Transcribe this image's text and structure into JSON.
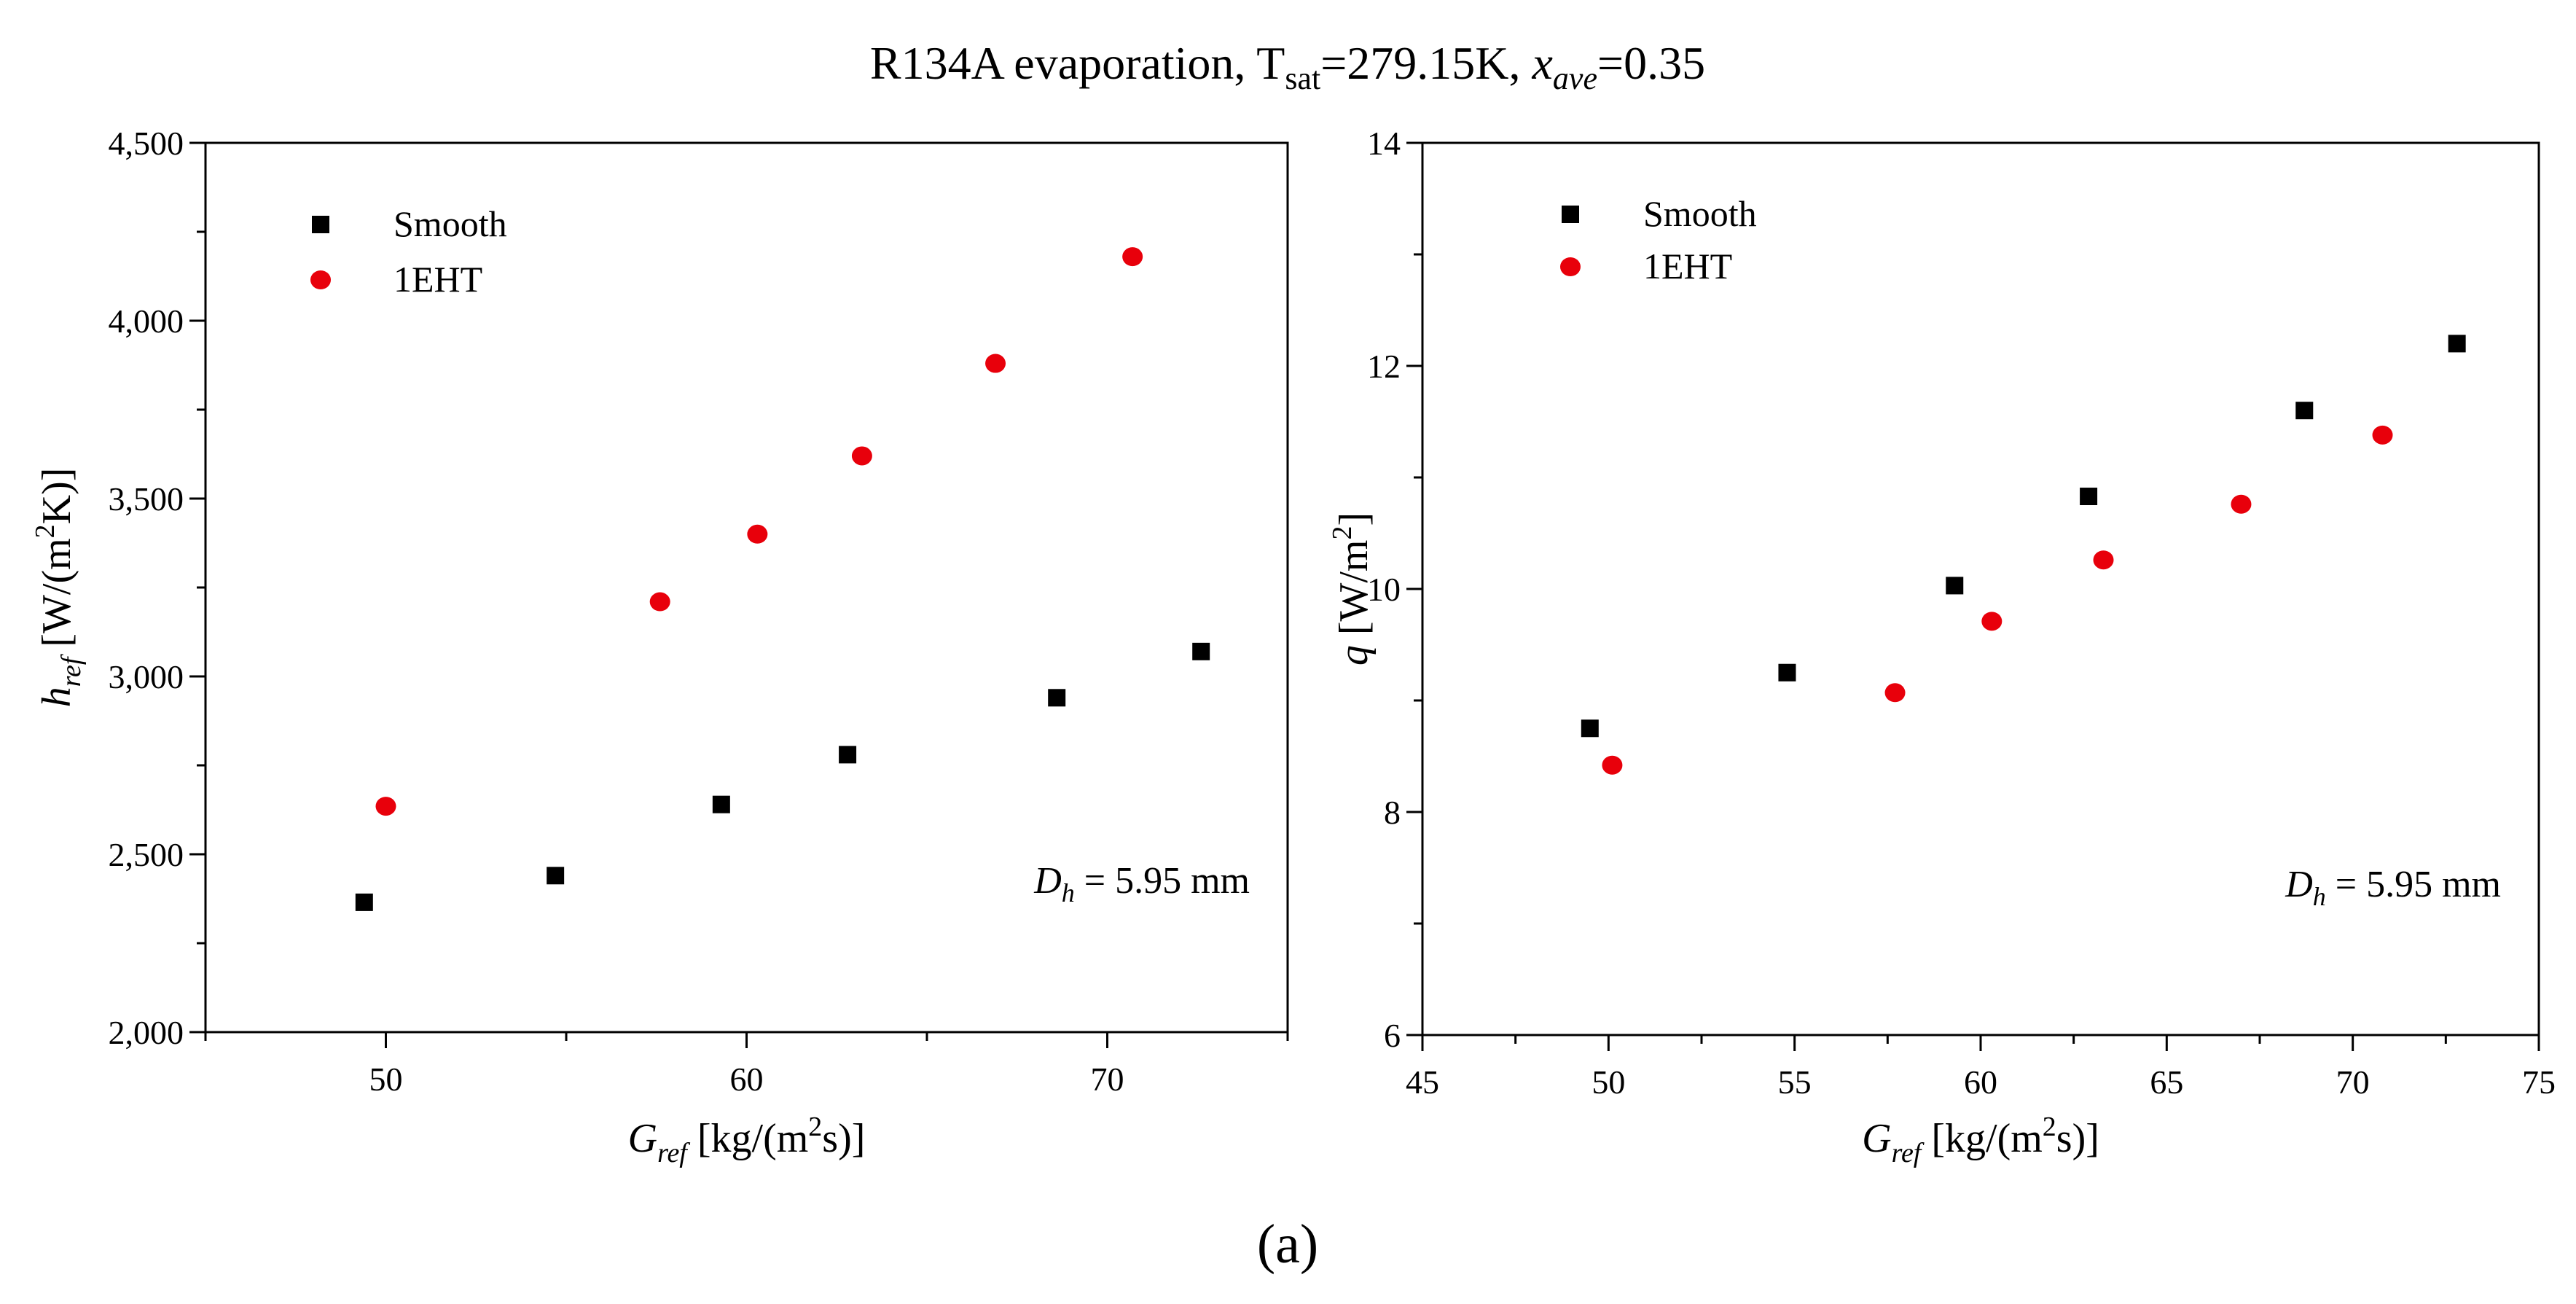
{
  "figure": {
    "title_parts": {
      "prefix": "R134A evaporation, T",
      "tsat_sub": "sat",
      "tsat_value": "=279.15K, ",
      "x_italic": "x",
      "x_sub": "ave",
      "x_value": "=0.35"
    },
    "panel_label": "(a)"
  },
  "chart_data": [
    {
      "type": "scatter",
      "title": "R134A evaporation, Tsat=279.15K, xave=0.35",
      "xlabel": "G_ref [kg/(m²s)]",
      "ylabel": "h_ref [W/(m²K)]",
      "xlabel_parts": {
        "main": "G",
        "sub": "ref",
        "rest": "[kg/(m",
        "sup": "2",
        "tail": "s)]"
      },
      "ylabel_parts": {
        "main": "h",
        "sub": "ref",
        "rest": "[W/(m",
        "sup": "2",
        "tail": "K)]"
      },
      "xlim": [
        45,
        75
      ],
      "ylim": [
        2000,
        4500
      ],
      "xticks_major": [
        50,
        60,
        70
      ],
      "xtick_labels": [
        "50",
        "60",
        "70"
      ],
      "xticks_minor": [
        45,
        55,
        65,
        75
      ],
      "yticks_major": [
        2000,
        2500,
        3000,
        3500,
        4000,
        4500
      ],
      "ytick_labels": [
        "2,000",
        "2,500",
        "3,000",
        "3,500",
        "4,000",
        "4,500"
      ],
      "yticks_minor": [
        2250,
        2750,
        3250,
        3750,
        4250
      ],
      "grid": false,
      "legend_position": "top-left",
      "annotation": {
        "main": "D",
        "sub": "h",
        "rest": " = 5.95 mm"
      },
      "series": [
        {
          "name": "Smooth",
          "marker": "square",
          "color": "#000000",
          "x": [
            49.4,
            54.7,
            59.3,
            62.8,
            68.6,
            72.6
          ],
          "y": [
            2365,
            2440,
            2640,
            2780,
            2940,
            3070
          ]
        },
        {
          "name": "1EHT",
          "marker": "circle",
          "color": "#e8000b",
          "x": [
            50.0,
            57.6,
            60.3,
            63.2,
            66.9,
            70.7
          ],
          "y": [
            2635,
            3210,
            3400,
            3620,
            3880,
            4180
          ]
        }
      ]
    },
    {
      "type": "scatter",
      "title": "",
      "xlabel": "G_ref [kg/(m²s)]",
      "ylabel": "q [W/m²]",
      "xlabel_parts": {
        "main": "G",
        "sub": "ref",
        "rest": "[kg/(m",
        "sup": "2",
        "tail": "s)]"
      },
      "ylabel_parts": {
        "main": "q",
        "rest": " [W/m",
        "sup": "2",
        "tail": "]"
      },
      "xlim": [
        45,
        75
      ],
      "ylim": [
        6,
        14
      ],
      "xticks_major": [
        45,
        50,
        55,
        60,
        65,
        70,
        75
      ],
      "xtick_labels": [
        "45",
        "50",
        "55",
        "60",
        "65",
        "70",
        "75"
      ],
      "xticks_minor": [
        47.5,
        52.5,
        57.5,
        62.5,
        67.5,
        72.5
      ],
      "yticks_major": [
        6,
        8,
        10,
        12,
        14
      ],
      "ytick_labels": [
        "6",
        "8",
        "10",
        "12",
        "14"
      ],
      "yticks_minor": [
        7,
        9,
        11,
        13
      ],
      "grid": false,
      "legend_position": "top-left",
      "annotation": {
        "main": "D",
        "sub": "h",
        "rest": " = 5.95 mm"
      },
      "series": [
        {
          "name": "Smooth",
          "marker": "square",
          "color": "#000000",
          "x": [
            49.5,
            54.8,
            59.3,
            62.9,
            68.7,
            72.8
          ],
          "y": [
            8.75,
            9.25,
            10.03,
            10.83,
            11.6,
            12.2
          ]
        },
        {
          "name": "1EHT",
          "marker": "circle",
          "color": "#e8000b",
          "x": [
            50.1,
            57.7,
            60.3,
            63.3,
            67.0,
            70.8
          ],
          "y": [
            8.42,
            9.07,
            9.71,
            10.26,
            10.76,
            11.38
          ]
        }
      ]
    }
  ]
}
